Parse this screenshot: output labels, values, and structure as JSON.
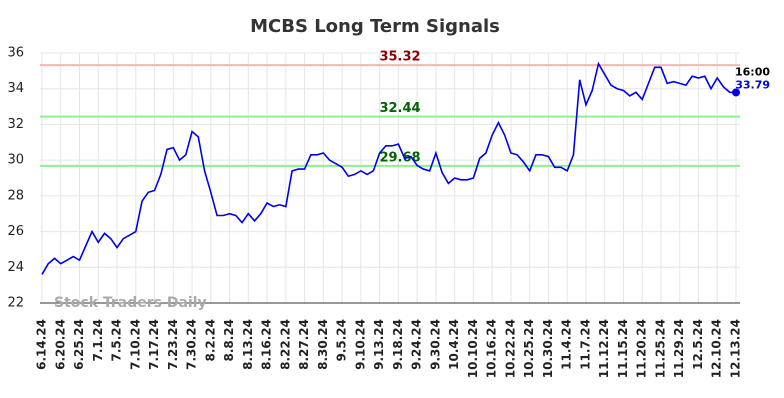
{
  "chart_data": {
    "type": "line",
    "title": "MCBS Long Term Signals",
    "watermark": "Stock Traders Daily",
    "time_label": "16:00",
    "ylim": [
      22,
      36
    ],
    "yticks": [
      22,
      24,
      26,
      28,
      30,
      32,
      34,
      36
    ],
    "grid": true,
    "hlines": [
      {
        "value": 35.32,
        "color": "#ffb3b3",
        "text_color": "#8b0000"
      },
      {
        "value": 32.44,
        "color": "#90ee90",
        "text_color": "#006400"
      },
      {
        "value": 29.68,
        "color": "#90ee90",
        "text_color": "#006400"
      }
    ],
    "categories": [
      "6.14.24",
      null,
      null,
      "6.20.24",
      null,
      null,
      "6.25.24",
      null,
      null,
      "7.1.24",
      null,
      null,
      "7.5.24",
      null,
      null,
      "7.10.24",
      null,
      null,
      "7.17.24",
      null,
      null,
      "7.23.24",
      null,
      null,
      "7.30.24",
      null,
      null,
      "8.2.24",
      null,
      null,
      "8.8.24",
      null,
      null,
      "8.13.24",
      null,
      null,
      "8.16.24",
      null,
      null,
      "8.22.24",
      null,
      null,
      "8.27.24",
      null,
      null,
      "8.30.24",
      null,
      null,
      "9.5.24",
      null,
      null,
      "9.10.24",
      null,
      null,
      "9.13.24",
      null,
      null,
      "9.18.24",
      null,
      null,
      "9.24.24",
      null,
      null,
      "9.30.24",
      null,
      null,
      "10.4.24",
      null,
      null,
      "10.10.24",
      null,
      null,
      "10.16.24",
      null,
      null,
      "10.22.24",
      null,
      null,
      "10.25.24",
      null,
      null,
      "10.30.24",
      null,
      null,
      "11.4.24",
      null,
      null,
      "11.7.24",
      null,
      null,
      "11.12.24",
      null,
      null,
      "11.15.24",
      null,
      null,
      "11.20.24",
      null,
      null,
      "11.25.24",
      null,
      null,
      "11.29.24",
      null,
      null,
      "12.5.24",
      null,
      null,
      "12.10.24",
      null,
      null,
      "12.13.24"
    ],
    "series": [
      {
        "color": "#0000ee",
        "values": [
          23.6,
          24.2,
          24.5,
          24.2,
          24.4,
          24.6,
          24.4,
          25.2,
          26.0,
          25.4,
          25.9,
          25.6,
          25.1,
          25.6,
          25.8,
          26.0,
          27.7,
          28.2,
          28.3,
          29.2,
          30.6,
          30.7,
          30.0,
          30.3,
          31.6,
          31.3,
          29.4,
          28.2,
          26.9,
          26.9,
          27.0,
          26.9,
          26.5,
          27.0,
          26.6,
          27.0,
          27.6,
          27.4,
          27.5,
          27.4,
          29.4,
          29.5,
          29.5,
          30.3,
          30.3,
          30.4,
          30.0,
          29.8,
          29.6,
          29.1,
          29.2,
          29.4,
          29.2,
          29.4,
          30.4,
          30.8,
          30.8,
          30.9,
          30.1,
          30.2,
          29.7,
          29.5,
          29.4,
          30.4,
          29.3,
          28.7,
          29.0,
          28.9,
          28.9,
          29.0,
          30.1,
          30.4,
          31.4,
          32.1,
          31.4,
          30.4,
          30.3,
          29.9,
          29.4,
          30.3,
          30.3,
          30.2,
          29.6,
          29.6,
          29.4,
          30.3,
          34.5,
          33.1,
          33.9,
          35.4,
          34.8,
          34.2,
          34.0,
          33.9,
          33.6,
          33.8,
          33.4,
          34.3,
          35.2,
          35.2,
          34.3,
          34.4,
          34.3,
          34.2,
          34.7,
          34.6,
          34.7,
          34.0,
          34.6,
          34.1,
          33.8,
          33.79
        ]
      }
    ]
  }
}
